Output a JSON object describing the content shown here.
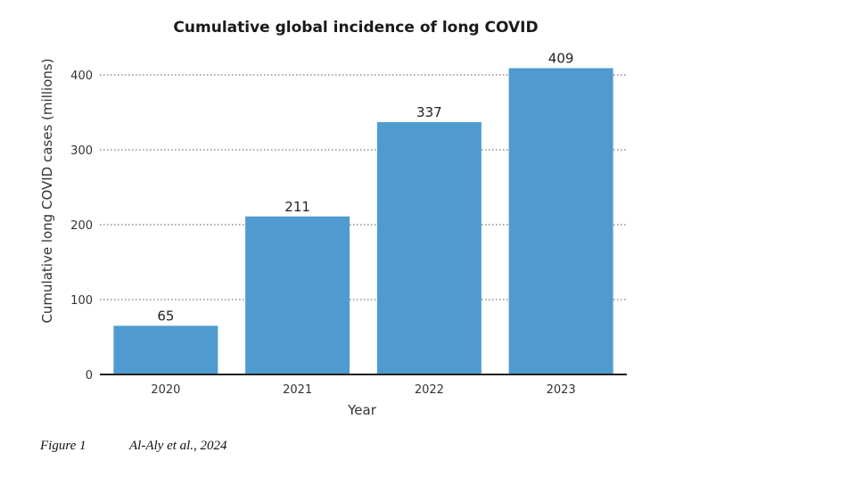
{
  "chart_data": {
    "type": "bar",
    "title": "Cumulative global incidence of long COVID",
    "xlabel": "Year",
    "ylabel": "Cumulative long COVID cases (millions)",
    "categories": [
      "2020",
      "2021",
      "2022",
      "2023"
    ],
    "values": [
      65,
      211,
      337,
      409
    ],
    "data_labels": [
      "65",
      "211",
      "337",
      "409"
    ],
    "yticks": [
      0,
      100,
      200,
      300,
      400
    ],
    "ytick_labels": [
      "0",
      "100",
      "200",
      "300",
      "400"
    ],
    "ylim": [
      0,
      420
    ],
    "grid": "horizontal dotted",
    "legend": "none",
    "bar_color": "#4f9bd0"
  },
  "caption": {
    "figure": "Figure 1",
    "source": "Al-Aly et al., 2024"
  }
}
